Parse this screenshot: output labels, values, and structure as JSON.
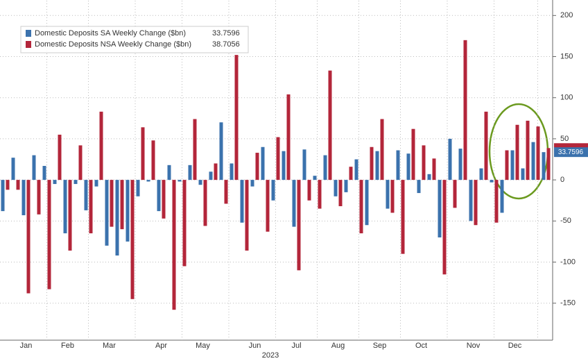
{
  "chart_data": {
    "type": "bar",
    "x_label": "2023",
    "categories": [
      null,
      null,
      "Jan",
      null,
      null,
      null,
      "Feb",
      null,
      null,
      null,
      "Mar",
      null,
      null,
      null,
      null,
      "Apr",
      null,
      null,
      null,
      "May",
      null,
      null,
      null,
      null,
      "Jun",
      null,
      null,
      null,
      "Jul",
      null,
      null,
      null,
      "Aug",
      null,
      null,
      null,
      "Sep",
      null,
      null,
      null,
      "Oct",
      null,
      null,
      null,
      null,
      "Nov",
      null,
      null,
      null,
      "Dec",
      null,
      null,
      null
    ],
    "series": [
      {
        "name": "Domestic Deposits SA Weekly Change ($bn)",
        "color": "#3b72ad",
        "values": [
          -38,
          27,
          -43,
          30,
          17,
          -5,
          -65,
          -5,
          -37,
          -8,
          -80,
          -92,
          -75,
          -20,
          -2,
          -38,
          18,
          -2,
          18,
          -6,
          10,
          70,
          20,
          -52,
          -8,
          40,
          -25,
          35,
          -57,
          37,
          5,
          30,
          -20,
          -15,
          25,
          -55,
          35,
          -35,
          36,
          32,
          -16,
          7,
          -70,
          50,
          38,
          -50,
          14,
          -3,
          -40,
          36,
          14,
          46,
          33.7596
        ]
      },
      {
        "name": "Domestic Deposits NSA Weekly Change ($bn)",
        "color": "#b3263a",
        "values": [
          -12,
          -12,
          -138,
          -42,
          -133,
          55,
          -86,
          42,
          -65,
          83,
          -57,
          -60,
          -145,
          64,
          48,
          -47,
          -158,
          -105,
          74,
          -56,
          20,
          -29,
          152,
          -86,
          33,
          -63,
          52,
          104,
          -110,
          -25,
          -35,
          133,
          -32,
          16,
          -65,
          40,
          74,
          -40,
          -90,
          62,
          42,
          26,
          -115,
          -34,
          170,
          -55,
          83,
          -52,
          36,
          67,
          72,
          65,
          38.7056
        ]
      }
    ],
    "ylim": [
      -195,
      218
    ],
    "yticks": [
      -150,
      -100,
      -50,
      0,
      50,
      100,
      150,
      200
    ],
    "grid": true,
    "legend": "top-left"
  }
}
